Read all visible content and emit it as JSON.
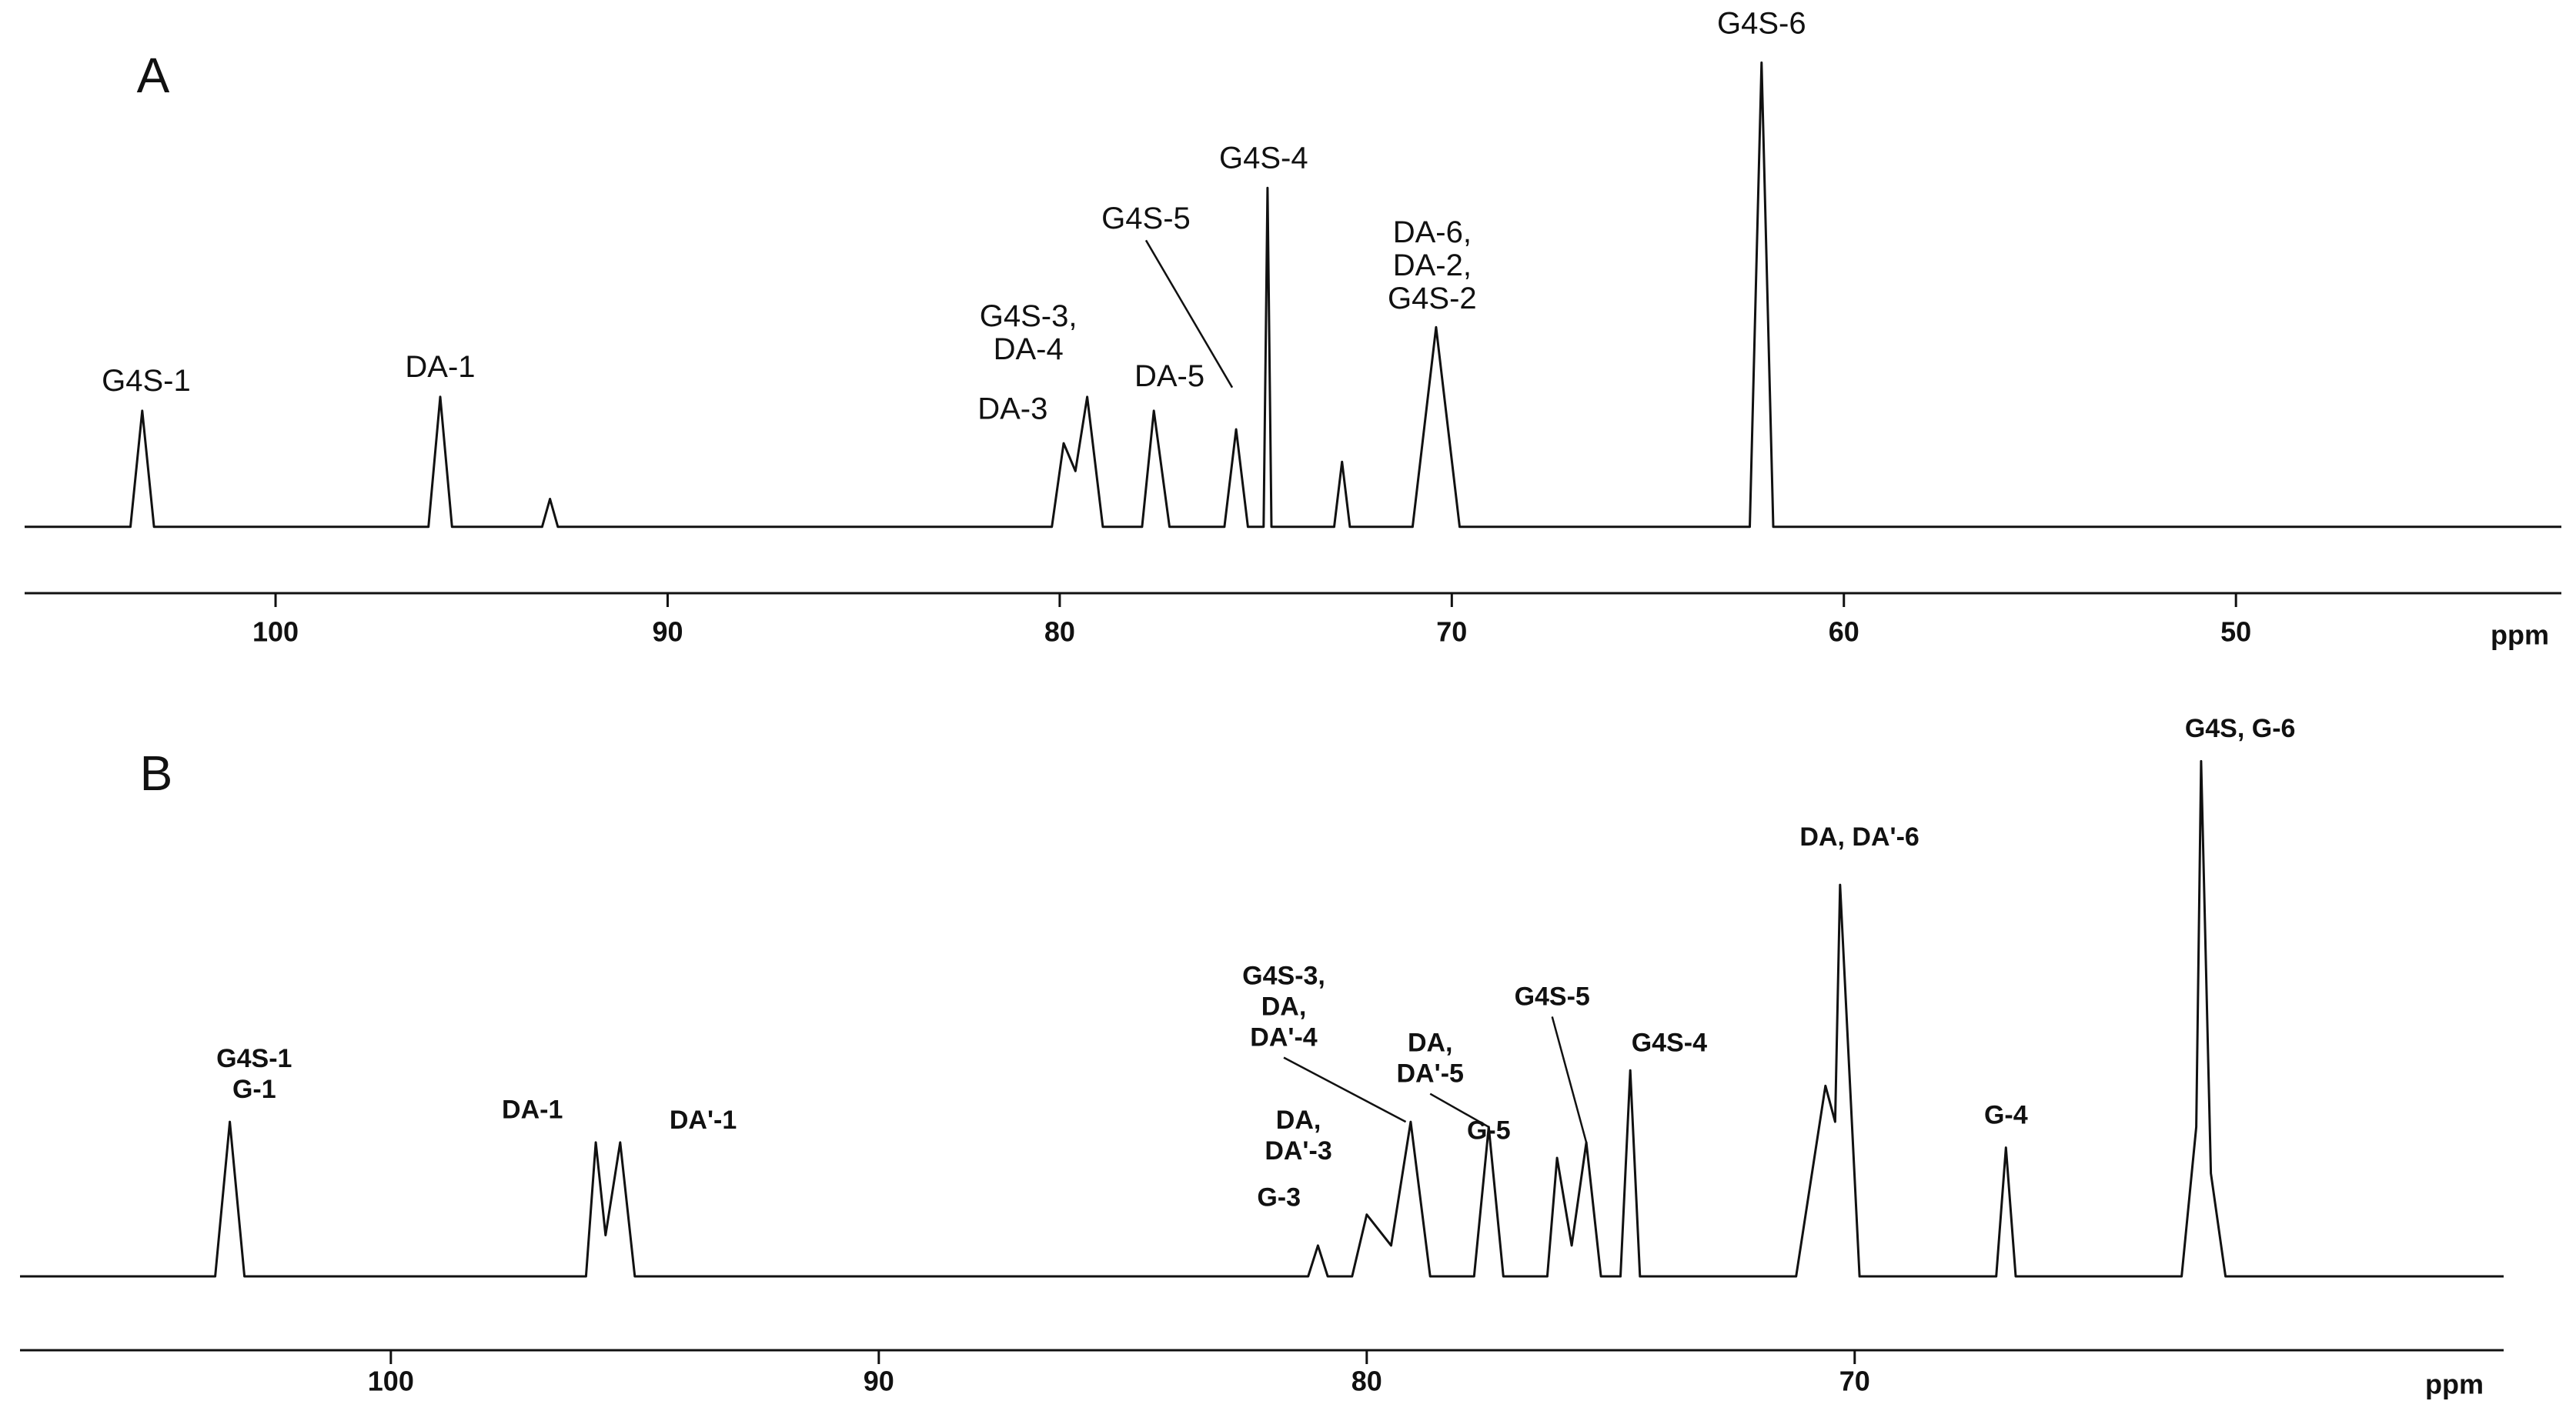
{
  "chart_data": [
    {
      "type": "spectrum",
      "label": "A",
      "xlabel": "ppm",
      "color": "#111111",
      "xlim": [
        106.4,
        41.7
      ],
      "xticks": [
        100,
        90,
        80,
        70,
        60,
        50
      ],
      "ylim": [
        -10,
        112
      ],
      "x": [
        106.4,
        103.7,
        103.4,
        103.1,
        96.1,
        95.8,
        95.5,
        93.2,
        93.0,
        92.8,
        80.2,
        79.9,
        79.6,
        79.3,
        78.9,
        77.9,
        77.6,
        77.2,
        75.8,
        75.5,
        75.2,
        74.8,
        74.7,
        74.6,
        73.0,
        72.8,
        72.6,
        71.0,
        70.4,
        69.8,
        62.4,
        62.1,
        61.8,
        41.7
      ],
      "values": [
        0,
        0,
        25,
        0,
        0,
        28,
        0,
        0,
        6,
        0,
        0,
        18,
        12,
        28,
        0,
        0,
        25,
        0,
        0,
        21,
        0,
        0,
        73,
        0,
        0,
        14,
        0,
        0,
        43,
        0,
        0,
        100,
        0,
        0
      ],
      "annotations": [
        {
          "lines": [
            "G4S-1"
          ],
          "x": 103.3,
          "y": 31
        },
        {
          "lines": [
            "DA-1"
          ],
          "x": 95.8,
          "y": 34
        },
        {
          "lines": [
            "G4S-3,",
            "DA-4"
          ],
          "x": 80.8,
          "y": 45
        },
        {
          "lines": [
            "DA-3"
          ],
          "x": 81.2,
          "y": 25
        },
        {
          "lines": [
            "DA-5"
          ],
          "x": 77.2,
          "y": 32
        },
        {
          "lines": [
            "G4S-5"
          ],
          "x": 77.8,
          "y": 66,
          "point": [
            75.6,
            30
          ]
        },
        {
          "lines": [
            "G4S-4"
          ],
          "x": 74.8,
          "y": 79
        },
        {
          "lines": [
            "DA-6,",
            "DA-2,",
            "G4S-2"
          ],
          "x": 70.5,
          "y": 63
        },
        {
          "lines": [
            "G4S-6"
          ],
          "x": 62.1,
          "y": 108
        }
      ]
    },
    {
      "type": "spectrum",
      "label": "B",
      "xlabel": "ppm",
      "color": "#111111",
      "xlim": [
        107.6,
        56.7
      ],
      "xticks": [
        100,
        90,
        80,
        70
      ],
      "ylim": [
        -10,
        112
      ],
      "x": [
        107.6,
        103.6,
        103.3,
        103.0,
        96.0,
        95.8,
        95.6,
        95.3,
        95.0,
        81.2,
        81.0,
        80.8,
        80.3,
        80.0,
        79.5,
        79.1,
        78.7,
        77.8,
        77.5,
        77.2,
        76.3,
        76.1,
        75.8,
        75.5,
        75.2,
        74.8,
        74.6,
        74.4,
        71.2,
        70.6,
        70.4,
        70.3,
        69.9,
        67.1,
        66.9,
        66.7,
        63.3,
        63.0,
        62.9,
        62.7,
        62.4,
        56.7
      ],
      "values": [
        0,
        0,
        30,
        0,
        0,
        26,
        8,
        26,
        0,
        0,
        6,
        0,
        0,
        12,
        6,
        30,
        0,
        0,
        29,
        0,
        0,
        23,
        6,
        26,
        0,
        0,
        40,
        0,
        0,
        37,
        30,
        76,
        0,
        0,
        25,
        0,
        0,
        29,
        100,
        20,
        0,
        0
      ],
      "annotations": [
        {
          "lines": [
            "G4S-1",
            "G-1"
          ],
          "x": 102.8,
          "y": 42
        },
        {
          "lines": [
            "DA-1"
          ],
          "x": 97.1,
          "y": 32
        },
        {
          "lines": [
            "DA'-1"
          ],
          "x": 93.6,
          "y": 30
        },
        {
          "lines": [
            "G4S-3,",
            "DA,",
            "DA'-4"
          ],
          "x": 81.7,
          "y": 58,
          "point": [
            79.2,
            30
          ]
        },
        {
          "lines": [
            "DA,",
            "DA'-3"
          ],
          "x": 81.4,
          "y": 30
        },
        {
          "lines": [
            "G-3"
          ],
          "x": 81.8,
          "y": 15
        },
        {
          "lines": [
            "DA,",
            "DA'-5"
          ],
          "x": 78.7,
          "y": 45,
          "point": [
            77.5,
            29
          ]
        },
        {
          "lines": [
            "G-5"
          ],
          "x": 77.5,
          "y": 28
        },
        {
          "lines": [
            "G4S-5"
          ],
          "x": 76.2,
          "y": 54,
          "point": [
            75.5,
            26
          ]
        },
        {
          "lines": [
            "G4S-4"
          ],
          "x": 73.8,
          "y": 45
        },
        {
          "lines": [
            "DA, DA'-6"
          ],
          "x": 69.9,
          "y": 85
        },
        {
          "lines": [
            "G-4"
          ],
          "x": 66.9,
          "y": 31
        },
        {
          "lines": [
            "G4S, G-6"
          ],
          "x": 62.1,
          "y": 106
        }
      ]
    }
  ]
}
